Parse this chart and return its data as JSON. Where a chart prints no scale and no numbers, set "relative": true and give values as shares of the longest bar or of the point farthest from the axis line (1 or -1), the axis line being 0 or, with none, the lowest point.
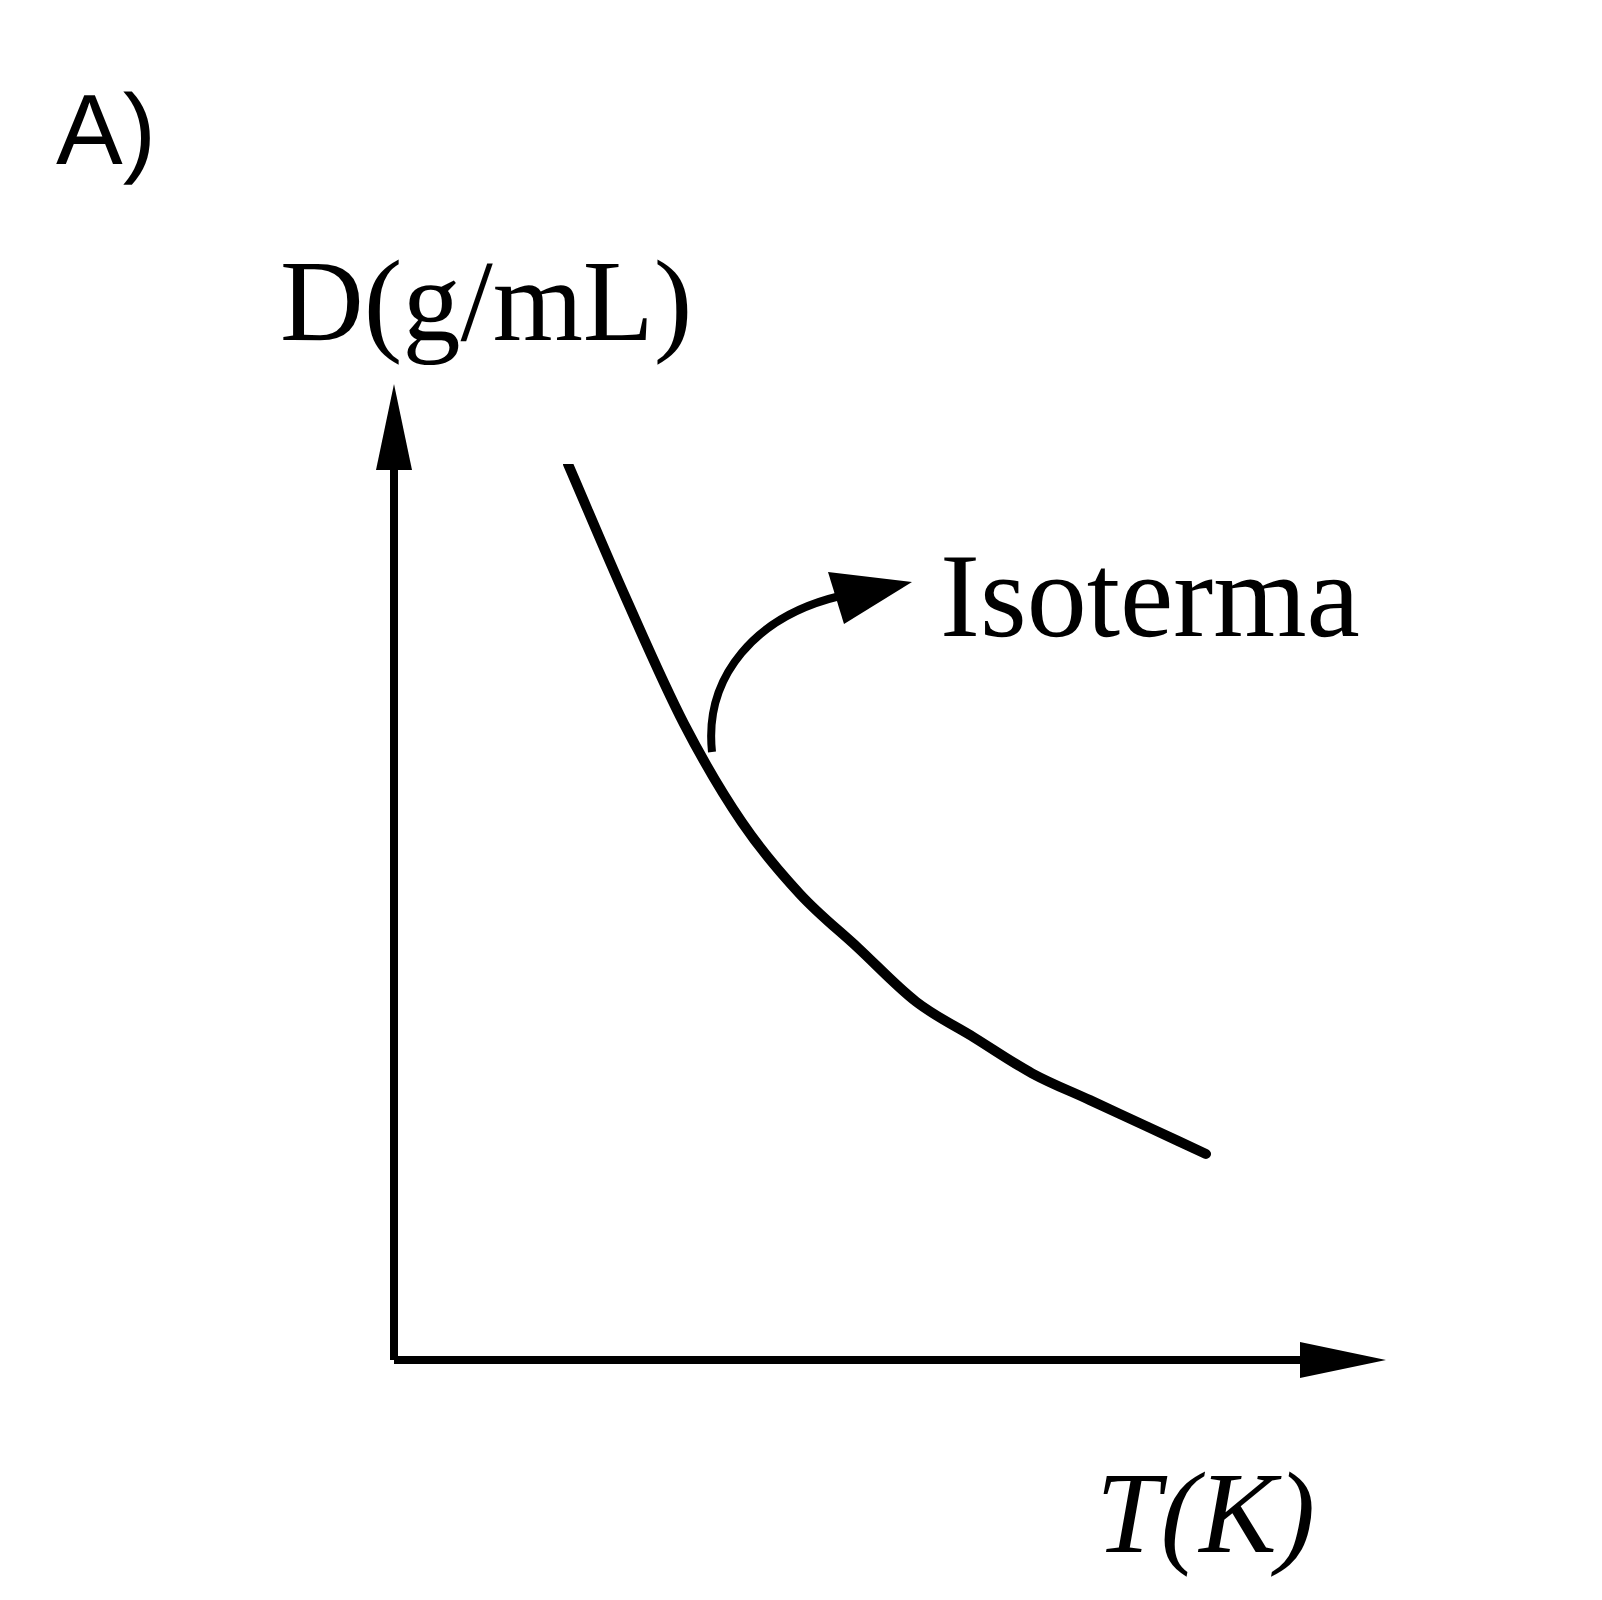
{
  "chart_data": {
    "type": "line",
    "relative": true,
    "xlabel": "T(K)",
    "ylabel": "D(g/mL)",
    "annotations": [
      "A)",
      "Isoterma"
    ],
    "marker": "none",
    "line_style": "solid",
    "categories": [
      null,
      null,
      null,
      null,
      null,
      null,
      null,
      null,
      null,
      null,
      null,
      null,
      null,
      null,
      null,
      null,
      null,
      null
    ],
    "series": [
      {
        "color": "#000000",
        "values": [
          null,
          null,
          null,
          1,
          0.85,
          0.71,
          0.6,
          0.52,
          0.46,
          0.4,
          0.36,
          0.32,
          0.29,
          0.26,
          0.23,
          null,
          null,
          null
        ]
      }
    ]
  }
}
